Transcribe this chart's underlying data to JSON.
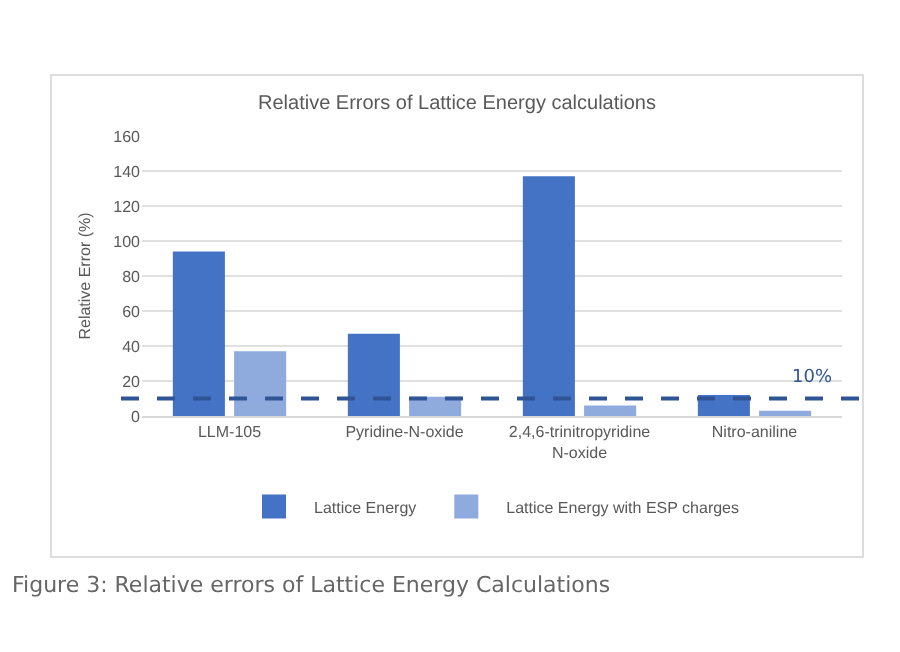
{
  "chart_data": {
    "type": "bar",
    "title": "Relative Errors of Lattice Energy calculations",
    "ylabel": "Relative Error (%)",
    "categories": [
      "LLM-105",
      "Pyridine-N-oxide",
      "2,4,6-trinitropyridine N-oxide",
      "Nitro-aniline"
    ],
    "series": [
      {
        "name": "Lattice Energy",
        "color": "#4472c4",
        "values": [
          94,
          47,
          137,
          12
        ]
      },
      {
        "name": "Lattice Energy with ESP charges",
        "color": "#8faadc",
        "values": [
          37,
          11,
          6,
          3
        ]
      }
    ],
    "ylim": [
      0,
      160
    ],
    "yticks": [
      0,
      20,
      40,
      60,
      80,
      100,
      120,
      140,
      160
    ],
    "grid": "y",
    "legend": "bottom",
    "ref_lines": [
      {
        "axis": "y",
        "value": 10,
        "label": "10%",
        "color": "#2f5597",
        "line_style": "dashed"
      }
    ],
    "annotations": [
      "Figure 3: Relative errors of Lattice Energy Calculations"
    ]
  }
}
